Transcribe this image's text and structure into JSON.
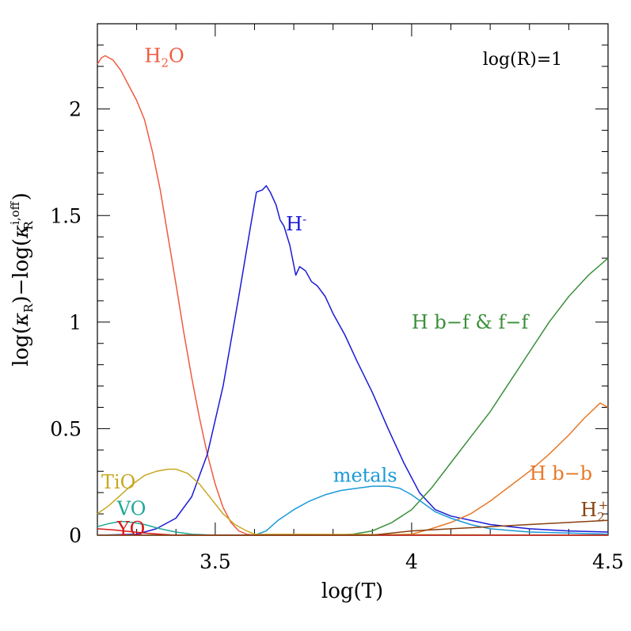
{
  "chart_data": {
    "type": "line",
    "annotation": "log(R)=1",
    "xlabel": "log(T)",
    "ylabel_parts": {
      "prefix": "log(",
      "kappa1": "κ",
      "sub1": "R",
      "mid": ")−log(",
      "kappa2": "κ",
      "sub2": "R",
      "sup2": "i,off",
      "suffix": ")"
    },
    "xlim": [
      3.2,
      4.5
    ],
    "ylim": [
      0,
      2.4
    ],
    "xticks": [
      {
        "value": 3.5,
        "label": "3.5"
      },
      {
        "value": 4.0,
        "label": "4"
      },
      {
        "value": 4.5,
        "label": "4.5"
      }
    ],
    "yticks": [
      {
        "value": 0,
        "label": "0"
      },
      {
        "value": 0.5,
        "label": "0.5"
      },
      {
        "value": 1.0,
        "label": "1"
      },
      {
        "value": 1.5,
        "label": "1.5"
      },
      {
        "value": 2.0,
        "label": "2"
      }
    ],
    "series": [
      {
        "name": "H2O",
        "label_main": "H",
        "label_sub": "2",
        "label_end": "O",
        "color": "#f05a40",
        "label_at": [
          3.32,
          2.22
        ],
        "points": [
          [
            3.2,
            2.21
          ],
          [
            3.21,
            2.24
          ],
          [
            3.22,
            2.25
          ],
          [
            3.24,
            2.23
          ],
          [
            3.26,
            2.18
          ],
          [
            3.28,
            2.11
          ],
          [
            3.3,
            2.04
          ],
          [
            3.32,
            1.95
          ],
          [
            3.34,
            1.8
          ],
          [
            3.36,
            1.62
          ],
          [
            3.38,
            1.4
          ],
          [
            3.4,
            1.18
          ],
          [
            3.42,
            0.95
          ],
          [
            3.44,
            0.74
          ],
          [
            3.46,
            0.55
          ],
          [
            3.48,
            0.38
          ],
          [
            3.5,
            0.24
          ],
          [
            3.52,
            0.13
          ],
          [
            3.54,
            0.06
          ],
          [
            3.56,
            0.02
          ],
          [
            3.58,
            0.005
          ],
          [
            3.6,
            0.0
          ],
          [
            4.5,
            0.0
          ]
        ]
      },
      {
        "name": "H-",
        "label_main": "H",
        "label_sup": "-",
        "color": "#1a1ad8",
        "label_at": [
          3.68,
          1.43
        ],
        "points": [
          [
            3.2,
            0.0
          ],
          [
            3.3,
            0.005
          ],
          [
            3.35,
            0.03
          ],
          [
            3.4,
            0.08
          ],
          [
            3.44,
            0.18
          ],
          [
            3.48,
            0.38
          ],
          [
            3.52,
            0.7
          ],
          [
            3.56,
            1.12
          ],
          [
            3.59,
            1.45
          ],
          [
            3.605,
            1.61
          ],
          [
            3.62,
            1.62
          ],
          [
            3.63,
            1.64
          ],
          [
            3.64,
            1.61
          ],
          [
            3.655,
            1.55
          ],
          [
            3.665,
            1.48
          ],
          [
            3.675,
            1.45
          ],
          [
            3.69,
            1.36
          ],
          [
            3.705,
            1.22
          ],
          [
            3.715,
            1.26
          ],
          [
            3.73,
            1.24
          ],
          [
            3.745,
            1.19
          ],
          [
            3.76,
            1.17
          ],
          [
            3.78,
            1.12
          ],
          [
            3.8,
            1.04
          ],
          [
            3.83,
            0.94
          ],
          [
            3.86,
            0.82
          ],
          [
            3.9,
            0.67
          ],
          [
            3.94,
            0.5
          ],
          [
            3.98,
            0.34
          ],
          [
            4.02,
            0.2
          ],
          [
            4.06,
            0.12
          ],
          [
            4.1,
            0.09
          ],
          [
            4.2,
            0.05
          ],
          [
            4.3,
            0.03
          ],
          [
            4.4,
            0.02
          ],
          [
            4.5,
            0.015
          ]
        ]
      },
      {
        "name": "H b-f & f-f",
        "label_main": "H b−f & f−f",
        "color": "#3a8f3a",
        "label_at": [
          4.0,
          0.97
        ],
        "points": [
          [
            3.2,
            0.0
          ],
          [
            3.8,
            0.0
          ],
          [
            3.85,
            0.005
          ],
          [
            3.9,
            0.02
          ],
          [
            3.95,
            0.06
          ],
          [
            4.0,
            0.12
          ],
          [
            4.05,
            0.22
          ],
          [
            4.1,
            0.34
          ],
          [
            4.15,
            0.46
          ],
          [
            4.2,
            0.58
          ],
          [
            4.25,
            0.72
          ],
          [
            4.3,
            0.86
          ],
          [
            4.35,
            1.0
          ],
          [
            4.4,
            1.12
          ],
          [
            4.45,
            1.22
          ],
          [
            4.5,
            1.3
          ]
        ]
      },
      {
        "name": "H b-b",
        "label_main": "H b−b",
        "color": "#e87828",
        "label_at": [
          4.3,
          0.26
        ],
        "points": [
          [
            3.2,
            0.0
          ],
          [
            3.9,
            0.0
          ],
          [
            4.0,
            0.005
          ],
          [
            4.05,
            0.03
          ],
          [
            4.1,
            0.06
          ],
          [
            4.15,
            0.1
          ],
          [
            4.2,
            0.16
          ],
          [
            4.25,
            0.23
          ],
          [
            4.3,
            0.3
          ],
          [
            4.35,
            0.38
          ],
          [
            4.4,
            0.47
          ],
          [
            4.44,
            0.55
          ],
          [
            4.48,
            0.62
          ],
          [
            4.5,
            0.6
          ]
        ]
      },
      {
        "name": "metals",
        "label_main": "metals",
        "color": "#1a9ad8",
        "label_at": [
          3.8,
          0.25
        ],
        "points": [
          [
            3.2,
            0.0
          ],
          [
            3.6,
            0.0
          ],
          [
            3.63,
            0.02
          ],
          [
            3.66,
            0.07
          ],
          [
            3.7,
            0.12
          ],
          [
            3.74,
            0.16
          ],
          [
            3.78,
            0.19
          ],
          [
            3.82,
            0.21
          ],
          [
            3.86,
            0.22
          ],
          [
            3.9,
            0.23
          ],
          [
            3.94,
            0.23
          ],
          [
            3.97,
            0.22
          ],
          [
            4.0,
            0.19
          ],
          [
            4.03,
            0.15
          ],
          [
            4.06,
            0.11
          ],
          [
            4.1,
            0.08
          ],
          [
            4.15,
            0.05
          ],
          [
            4.2,
            0.03
          ],
          [
            4.3,
            0.015
          ],
          [
            4.4,
            0.01
          ],
          [
            4.5,
            0.005
          ]
        ]
      },
      {
        "name": "TiO",
        "label_main": "TiO",
        "color": "#c8a820",
        "label_at": [
          3.21,
          0.22
        ],
        "points": [
          [
            3.2,
            0.1
          ],
          [
            3.23,
            0.14
          ],
          [
            3.26,
            0.19
          ],
          [
            3.29,
            0.24
          ],
          [
            3.32,
            0.28
          ],
          [
            3.35,
            0.3
          ],
          [
            3.38,
            0.31
          ],
          [
            3.4,
            0.31
          ],
          [
            3.43,
            0.29
          ],
          [
            3.46,
            0.24
          ],
          [
            3.49,
            0.17
          ],
          [
            3.52,
            0.1
          ],
          [
            3.55,
            0.05
          ],
          [
            3.58,
            0.02
          ],
          [
            3.6,
            0.005
          ],
          [
            4.5,
            0.0
          ]
        ]
      },
      {
        "name": "VO",
        "label_main": "VO",
        "color": "#20a898",
        "label_at": [
          3.25,
          0.095
        ],
        "points": [
          [
            3.2,
            0.04
          ],
          [
            3.23,
            0.055
          ],
          [
            3.26,
            0.065
          ],
          [
            3.29,
            0.06
          ],
          [
            3.32,
            0.05
          ],
          [
            3.36,
            0.03
          ],
          [
            3.4,
            0.015
          ],
          [
            3.44,
            0.005
          ],
          [
            3.5,
            0.0
          ],
          [
            4.5,
            0.0
          ]
        ]
      },
      {
        "name": "YO",
        "label_main": "YO",
        "color": "#d81818",
        "label_at": [
          3.25,
          0.0
        ],
        "points": [
          [
            3.2,
            0.03
          ],
          [
            3.24,
            0.025
          ],
          [
            3.28,
            0.018
          ],
          [
            3.32,
            0.01
          ],
          [
            3.36,
            0.005
          ],
          [
            3.4,
            0.0
          ],
          [
            4.5,
            0.0
          ]
        ]
      },
      {
        "name": "H2+",
        "label_main": "H",
        "label_sub": "2",
        "label_sup": "+",
        "color": "#8a4010",
        "label_at": [
          4.43,
          0.09
        ],
        "points": [
          [
            3.2,
            0.0
          ],
          [
            3.9,
            0.0
          ],
          [
            3.95,
            0.01
          ],
          [
            4.0,
            0.02
          ],
          [
            4.1,
            0.03
          ],
          [
            4.2,
            0.04
          ],
          [
            4.3,
            0.05
          ],
          [
            4.4,
            0.06
          ],
          [
            4.5,
            0.07
          ]
        ]
      }
    ]
  }
}
